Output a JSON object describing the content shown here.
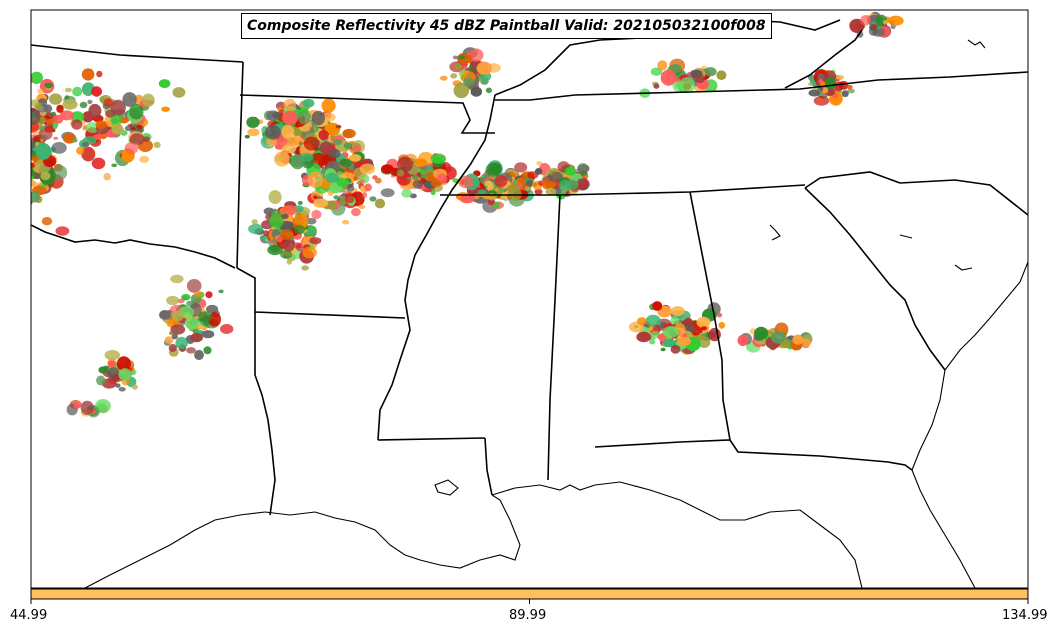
{
  "title": "Composite Reflectivity 45 dBZ Paintball Valid: 202105032100f008",
  "palette": [
    "#3cb371",
    "#5a9a5a",
    "#66dd66",
    "#2a8a2a",
    "#33cc33",
    "#ff8a00",
    "#ff9f3a",
    "#ffb347",
    "#e06000",
    "#ff5a5a",
    "#e02020",
    "#cc1100",
    "#a04040",
    "#b03030",
    "#b5b04a",
    "#9a9a30",
    "#5a5a5a",
    "#6a6a6a"
  ],
  "colorbar": {
    "color": "#ffbf5f",
    "ticks": [
      "44.99",
      "89.99",
      "134.99"
    ],
    "values": [
      44.99,
      89.99,
      134.99
    ]
  }
}
